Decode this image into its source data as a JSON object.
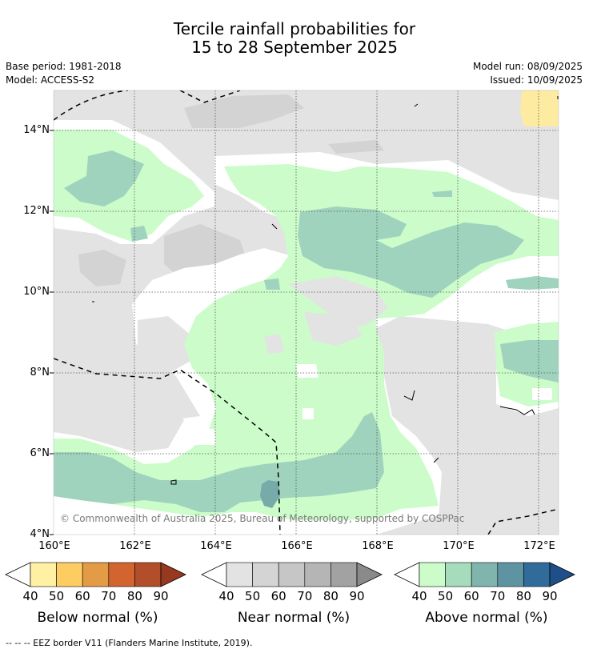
{
  "title_line1": "Tercile rainfall probabilities for",
  "title_line2": "15 to 28 September 2025",
  "meta": {
    "base_period": "Base period: 1981-2018",
    "model": "Model: ACCESS-S2",
    "model_run": "Model run: 08/09/2025",
    "issued": "Issued: 10/09/2025"
  },
  "map": {
    "lat_labels": [
      "14°N",
      "12°N",
      "10°N",
      "8°N",
      "6°N",
      "4°N"
    ],
    "lon_labels": [
      "160°E",
      "162°E",
      "164°E",
      "166°E",
      "168°E",
      "170°E",
      "172°E"
    ],
    "credit": "© Commonwealth of Australia 2025, Bureau of Meteorology, supported by COSPPac",
    "colors": {
      "near_normal": "#e3e3e3",
      "near_normal_darker": "#d3d3d3",
      "above_50": "#ccfcc9",
      "above_60": "#9fd3be",
      "above_70": "#77aba9",
      "below_50": "#fdeba1"
    }
  },
  "colorbars": [
    {
      "title": "Below normal (%)",
      "ticks": [
        "40",
        "50",
        "60",
        "70",
        "80",
        "90"
      ],
      "colors": [
        "#fff0a4",
        "#fecd62",
        "#e49b46",
        "#d2652f",
        "#b24e2a",
        "#98391f"
      ]
    },
    {
      "title": "Near normal (%)",
      "ticks": [
        "40",
        "50",
        "60",
        "70",
        "80",
        "90"
      ],
      "colors": [
        "#e3e3e3",
        "#d4d4d4",
        "#c6c6c6",
        "#b5b5b5",
        "#a2a2a2",
        "#8a8a8a"
      ]
    },
    {
      "title": "Above normal (%)",
      "ticks": [
        "40",
        "50",
        "60",
        "70",
        "80",
        "90"
      ],
      "colors": [
        "#ccfcc9",
        "#a6dbbc",
        "#7fb5ac",
        "#5e94a2",
        "#306b9a",
        "#1e4f88"
      ]
    }
  ],
  "footnote": "--  --  -- EEZ border V11 (Flanders Marine Institute, 2019)."
}
